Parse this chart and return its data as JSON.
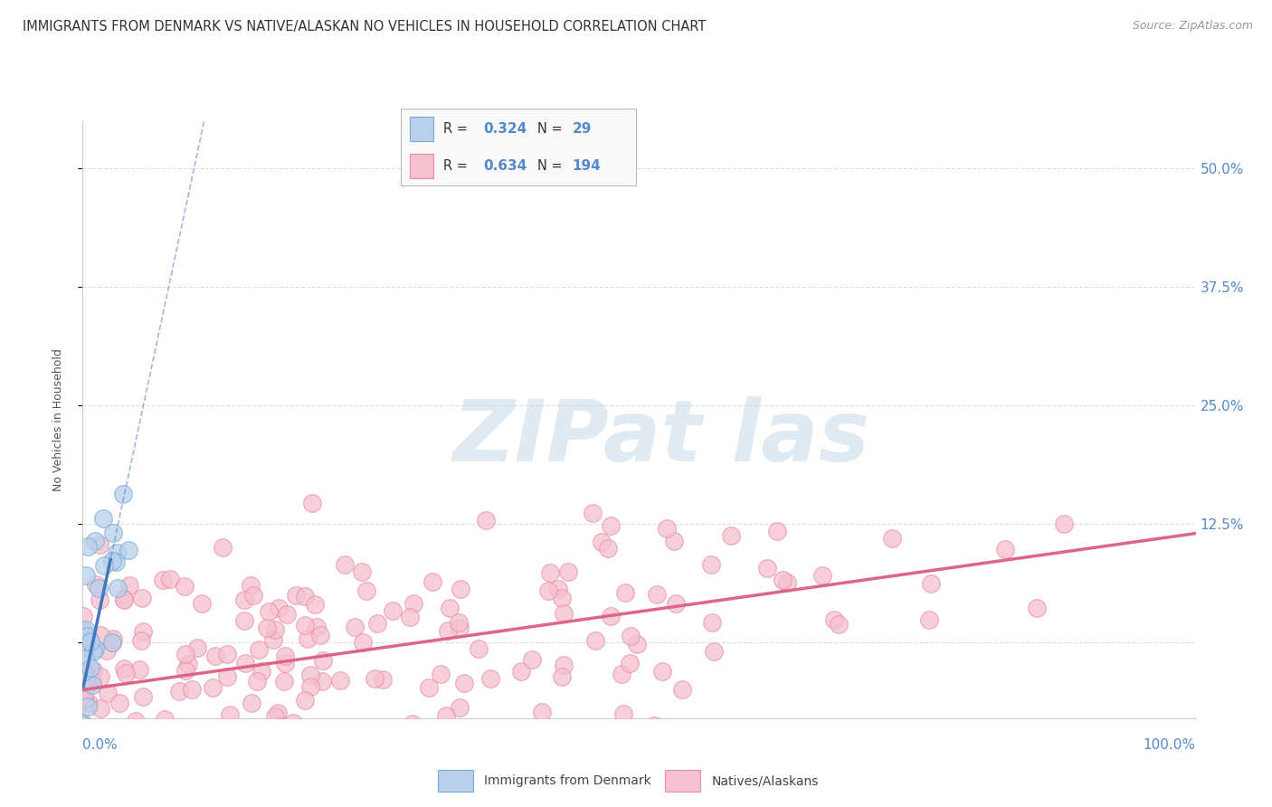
{
  "title": "IMMIGRANTS FROM DENMARK VS NATIVE/ALASKAN NO VEHICLES IN HOUSEHOLD CORRELATION CHART",
  "source": "Source: ZipAtlas.com",
  "ylabel": "No Vehicles in Household",
  "legend_entries": [
    {
      "label": "Immigrants from Denmark",
      "R": "0.324",
      "N": "29",
      "scatter_color": "#b8d0ec",
      "scatter_edge": "#7aaad4",
      "line_color": "#4477bb"
    },
    {
      "label": "Natives/Alaskans",
      "R": "0.634",
      "N": "194",
      "scatter_color": "#f5c0d0",
      "scatter_edge": "#e890a8",
      "line_color": "#dd6688"
    }
  ],
  "watermark_text": "ZIPat las",
  "watermark_color": "#c8daea",
  "background_color": "#ffffff",
  "grid_color": "#dddddd",
  "right_tick_color": "#5588cc",
  "title_color": "#333333",
  "source_color": "#999999",
  "axis_label_color": "#555555",
  "blue_line_solid": {
    "x0": 0.0,
    "x1": 0.025,
    "slope": 5.5,
    "intercept": -0.05
  },
  "blue_line_dashed": {
    "x0": 0.0,
    "x1": 1.0,
    "slope": 5.5,
    "intercept": -0.05
  },
  "pink_line": {
    "x0": 0.0,
    "x1": 1.0,
    "slope": 0.165,
    "intercept": -0.05
  },
  "xlim": [
    0.0,
    1.0
  ],
  "ylim": [
    -0.08,
    0.55
  ],
  "yticks": [
    0.0,
    0.125,
    0.25,
    0.375,
    0.5
  ],
  "ytick_labels": [
    "",
    "12.5%",
    "25.0%",
    "37.5%",
    "50.0%"
  ]
}
